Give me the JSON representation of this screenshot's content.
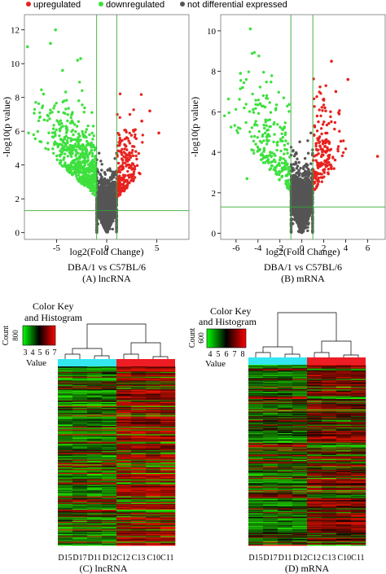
{
  "colors": {
    "up": "#e8231f",
    "down": "#3ee03e",
    "ns": "#555555",
    "threshold_line": "#33aa33",
    "group1_bar": "#33e6f0",
    "group2_bar": "#ee1c24"
  },
  "legend": {
    "items": [
      {
        "label": "upregulated",
        "color": "#e8231f"
      },
      {
        "label": "downregulated",
        "color": "#3ee03e"
      },
      {
        "label": "not differential expressed",
        "color": "#555555"
      }
    ]
  },
  "chart_data": [
    {
      "type": "scatter",
      "panel": "(A) lncRNA",
      "subtitle": "DBA/1 vs C57BL/6",
      "xlabel": "log2(Fold Change)",
      "ylabel": "-log10(p value)",
      "xlim": [
        -8.2,
        8.2
      ],
      "ylim": [
        -0.4,
        12.9
      ],
      "xticks": [
        -5,
        0,
        5
      ],
      "yticks": [
        0,
        2,
        4,
        6,
        8,
        10,
        12
      ],
      "thresholds": {
        "fold_change": [
          -1,
          1
        ],
        "p": 1.3
      },
      "series": [
        {
          "key": "ns",
          "n": 2600,
          "seed": 11
        },
        {
          "key": "down",
          "n": 600,
          "seed": 12
        },
        {
          "key": "up",
          "n": 220,
          "seed": 13
        }
      ],
      "outliers_down": [
        [
          -7.9,
          11.0
        ],
        [
          -5.1,
          12.0
        ],
        [
          -5.6,
          11.2
        ],
        [
          -2.6,
          10.3
        ],
        [
          -2.9,
          10.2
        ],
        [
          -4.4,
          9.6
        ],
        [
          -6.3,
          8.2
        ]
      ],
      "outliers_up": [
        [
          4.3,
          7.2
        ],
        [
          3.5,
          6.6
        ],
        [
          5.2,
          5.9
        ],
        [
          2.7,
          6.0
        ]
      ]
    },
    {
      "type": "scatter",
      "panel": "(B) mRNA",
      "subtitle": "DBA/1 vs C57BL/6",
      "xlabel": "log2(Fold Change)",
      "ylabel": "-log10(p value)",
      "xlim": [
        -7.4,
        7.6
      ],
      "ylim": [
        -0.3,
        10.8
      ],
      "xticks": [
        -6,
        -4,
        -2,
        0,
        2,
        4,
        6
      ],
      "yticks": [
        0,
        2,
        4,
        6,
        8,
        10
      ],
      "thresholds": {
        "fold_change": [
          -1,
          1
        ],
        "p": 1.3
      },
      "series": [
        {
          "key": "ns",
          "n": 2400,
          "seed": 21
        },
        {
          "key": "down",
          "n": 230,
          "seed": 22
        },
        {
          "key": "up",
          "n": 180,
          "seed": 23
        }
      ],
      "outliers_down": [
        [
          -4.7,
          10.1
        ],
        [
          -5.6,
          7.9
        ],
        [
          -5.4,
          7.2
        ],
        [
          -3.8,
          6.4
        ],
        [
          -3.3,
          5.6
        ],
        [
          -4.2,
          4.4
        ],
        [
          -5.0,
          2.7
        ]
      ],
      "outliers_up": [
        [
          2.7,
          8.5
        ],
        [
          4.2,
          7.6
        ],
        [
          3.1,
          7.0
        ],
        [
          6.9,
          3.8
        ],
        [
          2.1,
          6.2
        ],
        [
          3.4,
          5.9
        ]
      ]
    },
    {
      "type": "heatmap",
      "panel": "(C) lncRNA",
      "color_key_title": [
        "Color Key",
        "and Histogram"
      ],
      "key_ticks": [
        "3",
        "4",
        "5",
        "6",
        "7"
      ],
      "key_ylabel": "Count",
      "key_ytick": "800",
      "key_xlabel": "Value",
      "columns": [
        "D15",
        "D17",
        "D11",
        "D12",
        "C12",
        "C13",
        "C10",
        "C11"
      ],
      "column_labels": [
        "D15",
        "D17",
        "D11",
        "D12C12",
        "C13",
        "C10C11"
      ],
      "groups": [
        {
          "name": "D",
          "n": 4
        },
        {
          "name": "C",
          "n": 4
        }
      ],
      "rows": 190,
      "seed": 31,
      "bias": 0.45
    },
    {
      "type": "heatmap",
      "panel": "(D) mRNA",
      "color_key_title": [
        "Color Key",
        "and Histogram"
      ],
      "key_ticks": [
        "4",
        "5",
        "6",
        "7",
        "8"
      ],
      "key_ylabel": "Count",
      "key_ytick": "600",
      "key_xlabel": "Value",
      "columns": [
        "D15",
        "D17",
        "D11",
        "D12",
        "C12",
        "C13",
        "C10",
        "C11"
      ],
      "column_labels": [
        "D15",
        "D17",
        "D11",
        "D12C12",
        "C13",
        "C10C11"
      ],
      "groups": [
        {
          "name": "D",
          "n": 4
        },
        {
          "name": "C",
          "n": 4
        }
      ],
      "rows": 190,
      "seed": 41,
      "bias": 0.15
    }
  ]
}
